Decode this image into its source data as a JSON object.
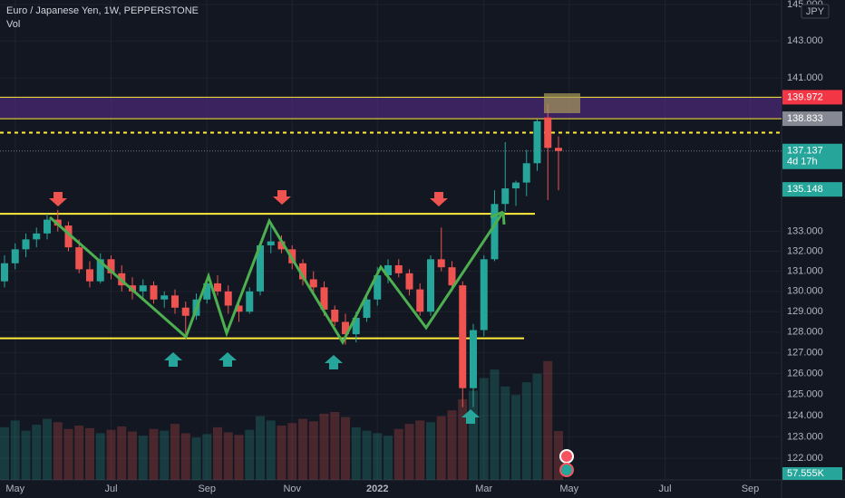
{
  "chart_data": {
    "type": "candlestick",
    "title": "Euro / Japanese Yen, 1W, PEPPERSTONE",
    "subtitle": "Vol",
    "currency": "JPY",
    "log_scale": true,
    "grid": true,
    "up_color": "#26a69a",
    "down_color": "#ef5350",
    "categories": [
      null,
      "May",
      null,
      null,
      null,
      null,
      null,
      null,
      null,
      null,
      "Jul",
      null,
      null,
      null,
      null,
      null,
      null,
      null,
      null,
      "Sep",
      null,
      null,
      null,
      null,
      null,
      null,
      null,
      "Nov",
      null,
      null,
      null,
      null,
      null,
      null,
      null,
      "2022",
      null,
      null,
      null,
      null,
      null,
      null,
      null,
      null,
      null,
      "Mar",
      null,
      null,
      null,
      null,
      null,
      null,
      null,
      "May",
      null,
      null,
      null,
      null,
      null,
      null,
      null,
      null,
      "Jul",
      null,
      null,
      null,
      null,
      null,
      null,
      null,
      "Sep",
      null
    ],
    "open": [
      130.5,
      131.4,
      132.1,
      132.6,
      132.9,
      133.6,
      133.3,
      132.2,
      131.1,
      130.5,
      131.6,
      130.9,
      130.3,
      130.0,
      130.3,
      129.6,
      129.8,
      129.2,
      128.8,
      129.6,
      130.4,
      130.0,
      129.3,
      129.0,
      130.0,
      132.3,
      132.5,
      132.1,
      131.4,
      130.6,
      130.2,
      129.1,
      128.5,
      127.9,
      128.7,
      129.6,
      130.8,
      131.3,
      130.9,
      130.1,
      129.0,
      131.6,
      131.2,
      130.3,
      125.3,
      128.1,
      131.6,
      134.4,
      135.2,
      135.5,
      136.5,
      138.9,
      137.3,
      null,
      null,
      null,
      null,
      null,
      null,
      null,
      null,
      null,
      null,
      null,
      null,
      null,
      null,
      null,
      null,
      null,
      null,
      null
    ],
    "high": [
      131.8,
      132.4,
      132.9,
      133.2,
      133.9,
      134.1,
      133.5,
      132.6,
      131.5,
      131.9,
      131.8,
      131.3,
      130.7,
      130.6,
      130.5,
      130.0,
      130.1,
      129.5,
      129.9,
      130.6,
      130.8,
      130.3,
      129.7,
      130.2,
      132.5,
      133.5,
      132.8,
      132.3,
      131.6,
      131.0,
      130.5,
      129.3,
      128.9,
      129.0,
      129.9,
      131.2,
      131.6,
      131.6,
      131.1,
      130.4,
      131.8,
      133.2,
      131.5,
      130.5,
      128.4,
      131.8,
      135.1,
      137.6,
      135.6,
      137.2,
      138.8,
      139.6,
      137.9,
      null,
      null,
      null,
      null,
      null,
      null,
      null,
      null,
      null,
      null,
      null,
      null,
      null,
      null,
      null,
      null,
      null,
      null,
      null
    ],
    "low": [
      130.2,
      131.1,
      131.7,
      132.2,
      132.6,
      133.0,
      132.0,
      130.9,
      130.2,
      130.4,
      130.6,
      130.0,
      129.6,
      129.7,
      129.4,
      129.2,
      128.9,
      127.9,
      128.6,
      129.4,
      129.8,
      128.9,
      128.5,
      128.9,
      129.8,
      131.9,
      131.9,
      131.1,
      130.3,
      129.9,
      128.8,
      128.3,
      127.4,
      127.5,
      128.5,
      129.3,
      130.4,
      130.7,
      129.8,
      128.8,
      128.8,
      131.0,
      130.0,
      124.4,
      124.4,
      127.8,
      131.5,
      134.0,
      134.3,
      134.8,
      136.1,
      134.6,
      135.1,
      null,
      null,
      null,
      null,
      null,
      null,
      null,
      null,
      null,
      null,
      null,
      null,
      null,
      null,
      null,
      null,
      null,
      null,
      null
    ],
    "close": [
      131.4,
      132.1,
      132.6,
      132.9,
      133.6,
      133.3,
      132.2,
      131.1,
      130.5,
      131.6,
      130.9,
      130.3,
      130.0,
      130.3,
      129.6,
      129.8,
      129.2,
      128.8,
      129.6,
      130.4,
      130.0,
      129.3,
      129.0,
      130.0,
      132.3,
      132.5,
      132.1,
      131.4,
      130.6,
      130.2,
      129.1,
      128.5,
      127.9,
      128.7,
      129.6,
      130.8,
      131.3,
      130.9,
      130.1,
      129.0,
      131.6,
      131.2,
      130.3,
      125.3,
      128.1,
      131.6,
      134.4,
      135.2,
      135.5,
      136.5,
      138.7,
      137.3,
      137.137,
      null,
      null,
      null,
      null,
      null,
      null,
      null,
      null,
      null,
      null,
      null,
      null,
      null,
      null,
      null,
      null,
      null,
      null,
      null
    ],
    "volume": [
      62000,
      70000,
      58000,
      65000,
      72000,
      68000,
      60000,
      64000,
      61000,
      55000,
      59000,
      63000,
      57000,
      52000,
      60000,
      58000,
      66000,
      55000,
      50000,
      54000,
      62000,
      56000,
      53000,
      59000,
      75000,
      70000,
      64000,
      67000,
      72000,
      69000,
      78000,
      80000,
      74000,
      62000,
      58000,
      55000,
      52000,
      60000,
      66000,
      70000,
      68000,
      75000,
      82000,
      95000,
      105000,
      120000,
      130000,
      110000,
      100000,
      115000,
      125000,
      140000,
      57555,
      null,
      null,
      null,
      null,
      null,
      null,
      null,
      null,
      null,
      null,
      null,
      null,
      null,
      null,
      null,
      null,
      null,
      null,
      null
    ],
    "volume_label": {
      "value": 57555,
      "label": "57.555K"
    },
    "ylim": [
      121,
      145.25
    ],
    "yticks": [
      {
        "value": 145,
        "label": "145.000"
      },
      {
        "value": 143,
        "label": "143.000"
      },
      {
        "value": 141,
        "label": "141.000"
      },
      {
        "value": 133,
        "label": "133.000"
      },
      {
        "value": 132,
        "label": "132.000"
      },
      {
        "value": 131,
        "label": "131.000"
      },
      {
        "value": 130,
        "label": "130.000"
      },
      {
        "value": 129,
        "label": "129.000"
      },
      {
        "value": 128,
        "label": "128.000"
      },
      {
        "value": 127,
        "label": "127.000"
      },
      {
        "value": 126,
        "label": "126.000"
      },
      {
        "value": 125,
        "label": "125.000"
      },
      {
        "value": 124,
        "label": "124.000"
      },
      {
        "value": 123,
        "label": "123.000"
      },
      {
        "value": 122,
        "label": "122.000"
      }
    ],
    "zone": [
      138.833,
      139.972
    ],
    "resistance": 133.9,
    "support": 127.7,
    "dotted_level": 138.1,
    "price_labels": [
      {
        "value": 139.972,
        "color": "#f23645"
      },
      {
        "value": 138.833,
        "color": "#868993"
      },
      {
        "value": 137.137,
        "color": "#26a69a"
      },
      {
        "value": 135.148,
        "color": "#26a69a"
      }
    ],
    "countdown": "4d 17h"
  }
}
